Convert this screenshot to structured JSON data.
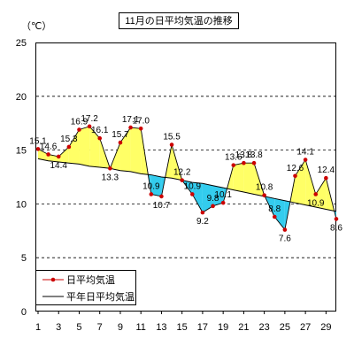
{
  "chart_data": {
    "type": "line",
    "title": "11月の日平均気温の推移",
    "ylabel": "（℃）",
    "xlabel": "",
    "ylim": [
      0,
      25
    ],
    "yticks": [
      0,
      5,
      10,
      15,
      20,
      25
    ],
    "xtick_labels": [
      "1",
      "3",
      "5",
      "7",
      "9",
      "11",
      "13",
      "15",
      "17",
      "19",
      "21",
      "23",
      "25",
      "27",
      "29"
    ],
    "xtick_days": [
      1,
      3,
      5,
      7,
      9,
      11,
      13,
      15,
      17,
      19,
      21,
      23,
      25,
      27,
      29
    ],
    "grid": "horizontal-dashed",
    "legend_position": "bottom-left",
    "x": [
      1,
      2,
      3,
      4,
      5,
      6,
      7,
      8,
      9,
      10,
      11,
      12,
      13,
      14,
      15,
      16,
      17,
      18,
      19,
      20,
      21,
      22,
      23,
      24,
      25,
      26,
      27,
      28,
      29,
      30
    ],
    "series": [
      {
        "name": "日平均気温",
        "color": "#cc0000",
        "marker": "circle",
        "values": [
          15.1,
          14.6,
          14.4,
          15.3,
          16.9,
          17.2,
          16.1,
          13.3,
          15.7,
          17.1,
          17.0,
          10.9,
          10.7,
          15.5,
          12.2,
          10.9,
          9.2,
          9.8,
          10.1,
          13.6,
          13.8,
          13.8,
          10.8,
          8.8,
          7.6,
          12.6,
          14.1,
          10.9,
          12.4,
          8.6
        ],
        "labeled_values": [
          "15.1",
          "14.6",
          "14.4",
          "15.3",
          "16.9",
          "17.2",
          "16.1",
          "13.3",
          "15.7",
          "17.1",
          "17.0",
          "10.9",
          "10.7",
          "15.5",
          "12.2",
          "10.9",
          "9.2",
          "9.8",
          "10.1",
          "13.6",
          "13.8",
          "13.8",
          "10.8",
          "8.8",
          "7.6",
          "12.6",
          "14.1",
          "10.9",
          "12.4",
          "8.6"
        ]
      },
      {
        "name": "平年日平均気温",
        "color": "#000000",
        "marker": "none",
        "values": [
          14.2,
          14.0,
          13.9,
          13.8,
          13.7,
          13.5,
          13.4,
          13.3,
          13.1,
          13.0,
          12.8,
          12.7,
          12.5,
          12.4,
          12.2,
          12.0,
          11.9,
          11.7,
          11.5,
          11.3,
          11.1,
          10.9,
          10.7,
          10.5,
          10.3,
          10.1,
          9.9,
          9.7,
          9.5,
          9.3
        ]
      }
    ],
    "fill_colors": {
      "above": "#ffff66",
      "below": "#33ccee"
    }
  }
}
